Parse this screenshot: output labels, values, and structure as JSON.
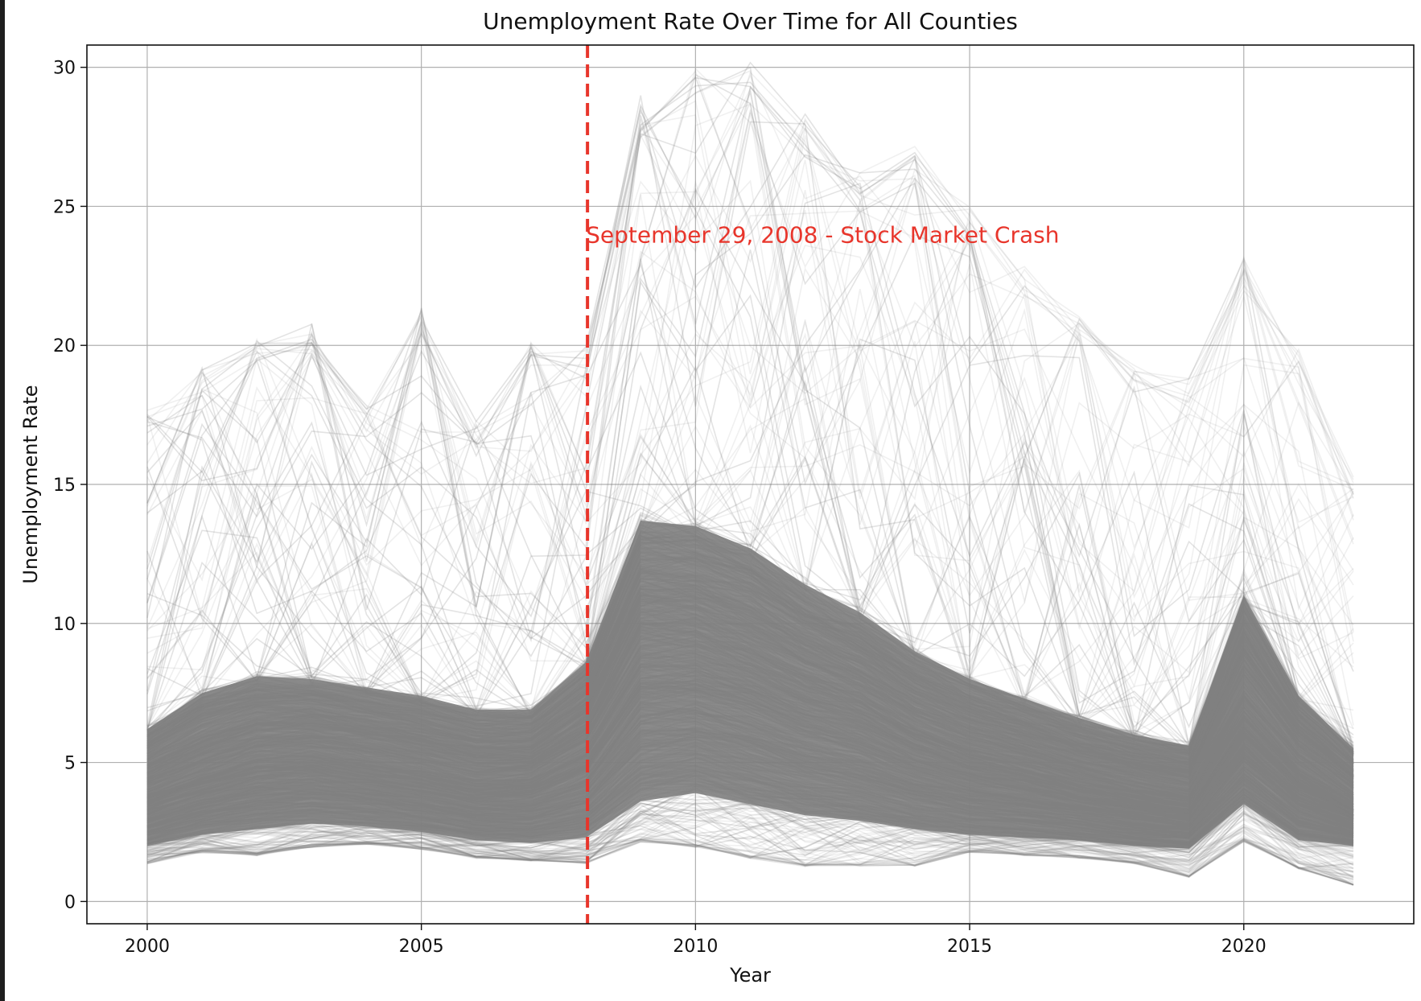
{
  "chart_data": {
    "type": "line",
    "title": "Unemployment Rate Over Time for All Counties",
    "xlabel": "Year",
    "ylabel": "Unemployment Rate",
    "xlim": [
      1998.9,
      2023.1
    ],
    "ylim": [
      -0.8,
      30.8
    ],
    "x_ticks": [
      2000,
      2005,
      2010,
      2015,
      2020
    ],
    "y_ticks": [
      0,
      5,
      10,
      15,
      20,
      25,
      30
    ],
    "grid": true,
    "line_color": "#808080",
    "years": [
      2000,
      2001,
      2002,
      2003,
      2004,
      2005,
      2006,
      2007,
      2008,
      2009,
      2010,
      2011,
      2012,
      2013,
      2014,
      2015,
      2016,
      2017,
      2018,
      2019,
      2020,
      2021,
      2022
    ],
    "envelope": {
      "min": [
        1.4,
        1.8,
        1.7,
        2.0,
        2.1,
        1.9,
        1.6,
        1.5,
        1.4,
        2.2,
        2.0,
        1.6,
        1.3,
        1.3,
        1.3,
        1.8,
        1.7,
        1.6,
        1.4,
        0.9,
        2.2,
        1.2,
        0.6
      ],
      "p05": [
        2.0,
        2.4,
        2.6,
        2.8,
        2.7,
        2.5,
        2.2,
        2.1,
        2.3,
        3.6,
        3.9,
        3.5,
        3.1,
        2.9,
        2.6,
        2.4,
        2.3,
        2.2,
        2.0,
        1.9,
        3.5,
        2.2,
        2.0
      ],
      "median": [
        3.9,
        4.6,
        5.2,
        5.3,
        5.0,
        4.7,
        4.3,
        4.4,
        5.4,
        8.6,
        8.6,
        8.0,
        7.2,
        6.6,
        5.6,
        5.0,
        4.6,
        4.1,
        3.7,
        3.4,
        6.4,
        4.4,
        3.3
      ],
      "p95": [
        6.2,
        7.5,
        8.1,
        8.0,
        7.7,
        7.4,
        6.9,
        6.9,
        8.6,
        13.7,
        13.5,
        12.7,
        11.4,
        10.4,
        9.0,
        8.0,
        7.3,
        6.6,
        6.0,
        5.6,
        11.0,
        7.4,
        5.5
      ],
      "max": [
        17.2,
        18.7,
        19.8,
        20.2,
        17.4,
        21.0,
        16.8,
        19.6,
        19.4,
        28.3,
        29.4,
        29.3,
        27.6,
        25.5,
        26.4,
        24.3,
        22.3,
        20.5,
        18.8,
        18.3,
        22.6,
        19.5,
        14.9
      ]
    },
    "annotation": {
      "x": 2008.03,
      "label": "September 29, 2008 - Stock Market Crash",
      "label_y": 23.7,
      "color": "#e8352b",
      "line_style": "dashed"
    }
  }
}
